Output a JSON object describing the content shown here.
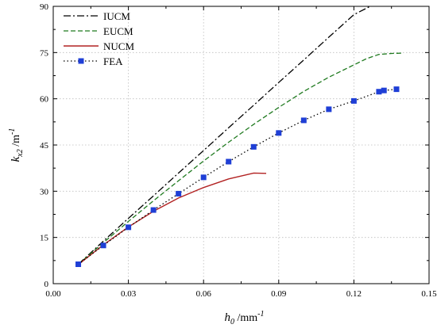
{
  "chart_data": {
    "type": "line",
    "xlim": [
      0.0,
      0.15
    ],
    "ylim": [
      0,
      90
    ],
    "x_ticks": [
      "0.00",
      "0.03",
      "0.06",
      "0.09",
      "0.12",
      "0.15"
    ],
    "y_ticks": [
      "0",
      "15",
      "30",
      "45",
      "60",
      "75",
      "90"
    ],
    "xlabel": {
      "var": "h",
      "sub": "0",
      "unit": " /mm",
      "sup": "-1"
    },
    "ylabel": {
      "var": "k",
      "sub": "x2",
      "unit": " /m",
      "sup": "-1"
    },
    "grid": true,
    "legend_position": "top-left",
    "series": [
      {
        "name": "IUCM",
        "style": "dash-dot",
        "color": "#000000",
        "x": [
          0.01,
          0.02,
          0.03,
          0.04,
          0.05,
          0.06,
          0.07,
          0.08,
          0.09,
          0.1,
          0.11,
          0.12,
          0.1265
        ],
        "y": [
          6.3,
          13.8,
          21.2,
          28.5,
          35.9,
          43.2,
          50.6,
          57.9,
          65.3,
          72.6,
          80.0,
          87.3,
          90.0
        ]
      },
      {
        "name": "EUCM",
        "style": "dashed",
        "color": "#1f7a1f",
        "x": [
          0.01,
          0.02,
          0.03,
          0.04,
          0.05,
          0.06,
          0.07,
          0.08,
          0.09,
          0.1,
          0.11,
          0.12,
          0.125,
          0.13,
          0.135,
          0.139
        ],
        "y": [
          6.3,
          13.3,
          20.2,
          26.9,
          33.4,
          39.8,
          45.9,
          51.7,
          57.2,
          62.4,
          67.0,
          71.0,
          73.0,
          74.4,
          74.7,
          74.8
        ]
      },
      {
        "name": "NUCM",
        "style": "solid",
        "color": "#b22222",
        "x": [
          0.01,
          0.02,
          0.03,
          0.04,
          0.05,
          0.06,
          0.07,
          0.08,
          0.085
        ],
        "y": [
          6.2,
          12.6,
          18.4,
          23.5,
          27.8,
          31.2,
          34.0,
          35.9,
          35.8
        ]
      },
      {
        "name": "FEA",
        "style": "dotted-markers",
        "color": "#1f3fd6",
        "x": [
          0.01,
          0.02,
          0.03,
          0.04,
          0.05,
          0.06,
          0.07,
          0.08,
          0.09,
          0.1,
          0.11,
          0.12,
          0.13,
          0.132,
          0.137
        ],
        "y": [
          6.3,
          12.4,
          18.3,
          23.9,
          29.2,
          34.5,
          39.6,
          44.4,
          48.9,
          53.0,
          56.6,
          59.3,
          62.3,
          62.7,
          63.1
        ]
      }
    ]
  }
}
